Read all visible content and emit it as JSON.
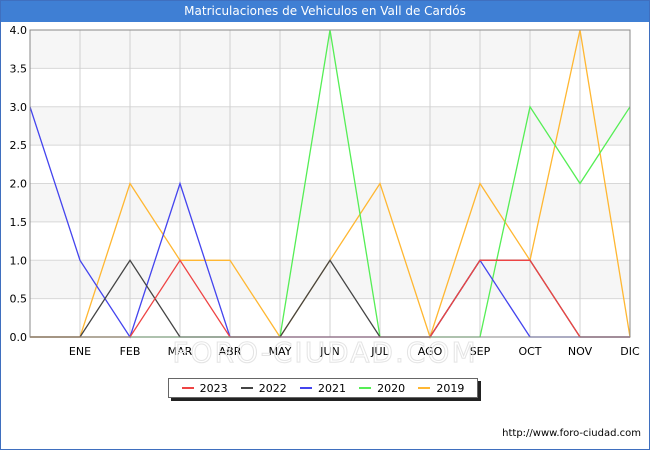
{
  "chart_data": {
    "type": "line",
    "title": "Matriculaciones de Vehiculos en Vall de Cardós",
    "categories": [
      "",
      "ENE",
      "FEB",
      "MAR",
      "ABR",
      "MAY",
      "JUN",
      "JUL",
      "AGO",
      "SEP",
      "OCT",
      "NOV",
      "DIC"
    ],
    "ylim": [
      0,
      4
    ],
    "yticks": [
      "0.0",
      "0.5",
      "1.0",
      "1.5",
      "2.0",
      "2.5",
      "3.0",
      "3.5",
      "4.0"
    ],
    "series": [
      {
        "name": "2019",
        "color": "#ffb732",
        "values": [
          0,
          0,
          2,
          1,
          1,
          0,
          1,
          2,
          0,
          2,
          1,
          4,
          0
        ]
      },
      {
        "name": "2020",
        "color": "#55ee55",
        "values": [
          0,
          0,
          0,
          0,
          0,
          0,
          4,
          0,
          0,
          0,
          3,
          2,
          3
        ]
      },
      {
        "name": "2021",
        "color": "#4444ee",
        "values": [
          3,
          1,
          0,
          2,
          0,
          0,
          0,
          0,
          0,
          1,
          0,
          0,
          0
        ]
      },
      {
        "name": "2022",
        "color": "#444444",
        "values": [
          0,
          0,
          1,
          0,
          0,
          0,
          1,
          0,
          0,
          1,
          1,
          0,
          0
        ]
      },
      {
        "name": "2023",
        "color": "#ee4444",
        "values": [
          0,
          0,
          0,
          1,
          0,
          0,
          0,
          0,
          0,
          1,
          1,
          0,
          0
        ]
      }
    ],
    "legend_order": [
      "2023",
      "2022",
      "2021",
      "2020",
      "2019"
    ],
    "watermark": "FORO-CIUDAD.COM",
    "footer": "http://www.foro-ciudad.com"
  }
}
